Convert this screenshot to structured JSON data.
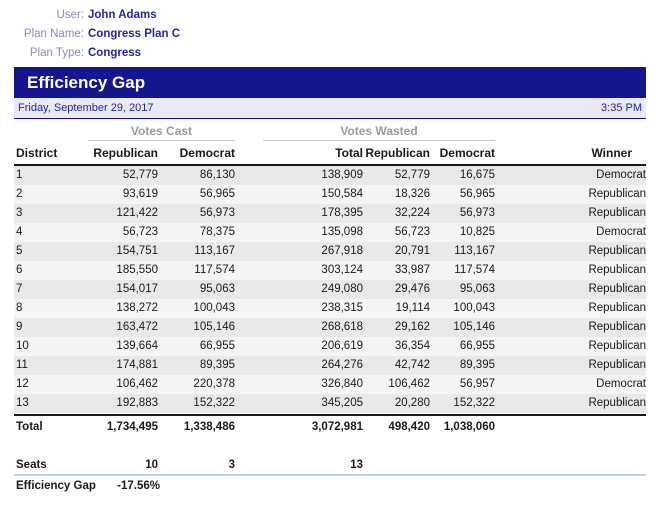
{
  "meta": {
    "user_label": "User:",
    "user": "John Adams",
    "plan_name_label": "Plan Name:",
    "plan_name": "Congress Plan C",
    "plan_type_label": "Plan Type:",
    "plan_type": "Congress"
  },
  "report": {
    "title": "Efficiency Gap",
    "date": "Friday, September 29, 2017",
    "time": "3:35 PM"
  },
  "colors": {
    "accent_navy": "#15158e",
    "meta_label_blue": "#8a8ac4",
    "meta_value_blue": "#2424ad",
    "stripe_gray": "#e9e9e9",
    "seats_rule_blue": "#b9d6e4"
  },
  "table": {
    "group_headers": {
      "votes_cast": "Votes Cast",
      "votes_wasted": "Votes Wasted"
    },
    "columns": {
      "district": "District",
      "rep_cast": "Republican",
      "dem_cast": "Democrat",
      "total": "Total",
      "rep_wasted": "Republican",
      "dem_wasted": "Democrat",
      "winner": "Winner"
    },
    "rows": [
      {
        "district": "1",
        "rep_cast": "52,779",
        "dem_cast": "86,130",
        "total": "138,909",
        "rep_wasted": "52,779",
        "dem_wasted": "16,675",
        "winner": "Democrat"
      },
      {
        "district": "2",
        "rep_cast": "93,619",
        "dem_cast": "56,965",
        "total": "150,584",
        "rep_wasted": "18,326",
        "dem_wasted": "56,965",
        "winner": "Republican"
      },
      {
        "district": "3",
        "rep_cast": "121,422",
        "dem_cast": "56,973",
        "total": "178,395",
        "rep_wasted": "32,224",
        "dem_wasted": "56,973",
        "winner": "Republican"
      },
      {
        "district": "4",
        "rep_cast": "56,723",
        "dem_cast": "78,375",
        "total": "135,098",
        "rep_wasted": "56,723",
        "dem_wasted": "10,825",
        "winner": "Democrat"
      },
      {
        "district": "5",
        "rep_cast": "154,751",
        "dem_cast": "113,167",
        "total": "267,918",
        "rep_wasted": "20,791",
        "dem_wasted": "113,167",
        "winner": "Republican"
      },
      {
        "district": "6",
        "rep_cast": "185,550",
        "dem_cast": "117,574",
        "total": "303,124",
        "rep_wasted": "33,987",
        "dem_wasted": "117,574",
        "winner": "Republican"
      },
      {
        "district": "7",
        "rep_cast": "154,017",
        "dem_cast": "95,063",
        "total": "249,080",
        "rep_wasted": "29,476",
        "dem_wasted": "95,063",
        "winner": "Republican"
      },
      {
        "district": "8",
        "rep_cast": "138,272",
        "dem_cast": "100,043",
        "total": "238,315",
        "rep_wasted": "19,114",
        "dem_wasted": "100,043",
        "winner": "Republican"
      },
      {
        "district": "9",
        "rep_cast": "163,472",
        "dem_cast": "105,146",
        "total": "268,618",
        "rep_wasted": "29,162",
        "dem_wasted": "105,146",
        "winner": "Republican"
      },
      {
        "district": "10",
        "rep_cast": "139,664",
        "dem_cast": "66,955",
        "total": "206,619",
        "rep_wasted": "36,354",
        "dem_wasted": "66,955",
        "winner": "Republican"
      },
      {
        "district": "11",
        "rep_cast": "174,881",
        "dem_cast": "89,395",
        "total": "264,276",
        "rep_wasted": "42,742",
        "dem_wasted": "89,395",
        "winner": "Republican"
      },
      {
        "district": "12",
        "rep_cast": "106,462",
        "dem_cast": "220,378",
        "total": "326,840",
        "rep_wasted": "106,462",
        "dem_wasted": "56,957",
        "winner": "Democrat"
      },
      {
        "district": "13",
        "rep_cast": "192,883",
        "dem_cast": "152,322",
        "total": "345,205",
        "rep_wasted": "20,280",
        "dem_wasted": "152,322",
        "winner": "Republican"
      }
    ],
    "total_row": {
      "label": "Total",
      "rep_cast": "1,734,495",
      "dem_cast": "1,338,486",
      "total": "3,072,981",
      "rep_wasted": "498,420",
      "dem_wasted": "1,038,060"
    },
    "seats_row": {
      "label": "Seats",
      "rep": "10",
      "dem": "3",
      "total": "13"
    },
    "efficiency_gap": {
      "label": "Efficiency Gap",
      "value": "-17.56%"
    }
  }
}
